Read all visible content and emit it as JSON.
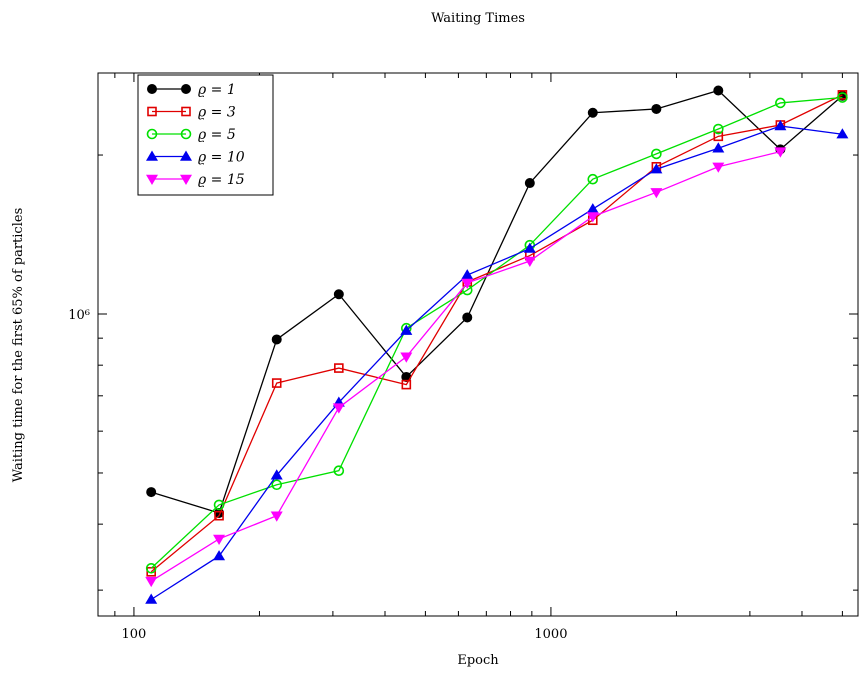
{
  "chart_data": {
    "type": "line",
    "title": "Waiting Times",
    "xlabel": "Epoch",
    "ylabel": "Waiting time for the first 65% of particles",
    "xscale": "log",
    "yscale": "log",
    "xlim": [
      82,
      5450
    ],
    "ylim": [
      268000,
      2860000
    ],
    "xticks": [
      {
        "value": 100,
        "label": "100"
      },
      {
        "value": 1000,
        "label": "1000"
      }
    ],
    "yticks": [
      {
        "value": 1000000,
        "label": "10⁶"
      }
    ],
    "legend_position": "top-left",
    "grid": false,
    "x": [
      110,
      160,
      220,
      310,
      450,
      630,
      890,
      1260,
      1790,
      2520,
      3550,
      5000
    ],
    "series": [
      {
        "name": "ϱ = 1",
        "color": "#000000",
        "marker": "filled-circle",
        "values": [
          460000,
          420000,
          895000,
          1090000,
          760000,
          985000,
          1770000,
          2405000,
          2445000,
          2650000,
          2050000,
          2590000
        ]
      },
      {
        "name": "ϱ = 3",
        "color": "#e00000",
        "marker": "open-square",
        "values": [
          325000,
          415000,
          740000,
          790000,
          735000,
          1150000,
          1290000,
          1505000,
          1900000,
          2170000,
          2280000,
          2600000
        ]
      },
      {
        "name": "ϱ = 5",
        "color": "#00e000",
        "marker": "open-circle",
        "values": [
          330000,
          435000,
          475000,
          505000,
          940000,
          1110000,
          1350000,
          1800000,
          2010000,
          2240000,
          2510000,
          2570000
        ]
      },
      {
        "name": "ϱ = 10",
        "color": "#0000ee",
        "marker": "filled-triangle-up",
        "values": [
          288000,
          348000,
          495000,
          680000,
          930000,
          1185000,
          1330000,
          1580000,
          1880000,
          2060000,
          2270000,
          2190000
        ]
      },
      {
        "name": "ϱ = 15",
        "color": "#ff00ff",
        "marker": "filled-triangle-down",
        "values": [
          312000,
          375000,
          415000,
          665000,
          830000,
          1145000,
          1260000,
          1530000,
          1700000,
          1900000,
          2030000,
          null
        ]
      }
    ]
  }
}
